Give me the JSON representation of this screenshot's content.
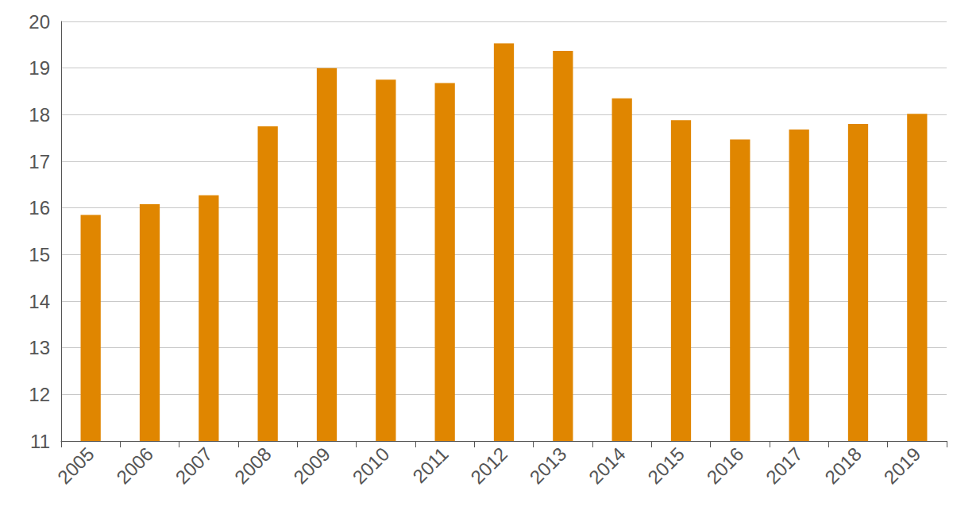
{
  "chart_data": {
    "type": "bar",
    "categories": [
      "2005",
      "2006",
      "2007",
      "2008",
      "2009",
      "2010",
      "2011",
      "2012",
      "2013",
      "2014",
      "2015",
      "2016",
      "2017",
      "2018",
      "2019"
    ],
    "values": [
      15.85,
      16.08,
      16.27,
      17.75,
      19.0,
      18.75,
      18.68,
      19.53,
      19.37,
      18.35,
      17.88,
      17.47,
      17.68,
      17.8,
      18.02
    ],
    "color": "#e08600",
    "ylim": [
      11,
      20
    ],
    "yticks": [
      11,
      12,
      13,
      14,
      15,
      16,
      17,
      18,
      19,
      20
    ],
    "grid": true
  }
}
